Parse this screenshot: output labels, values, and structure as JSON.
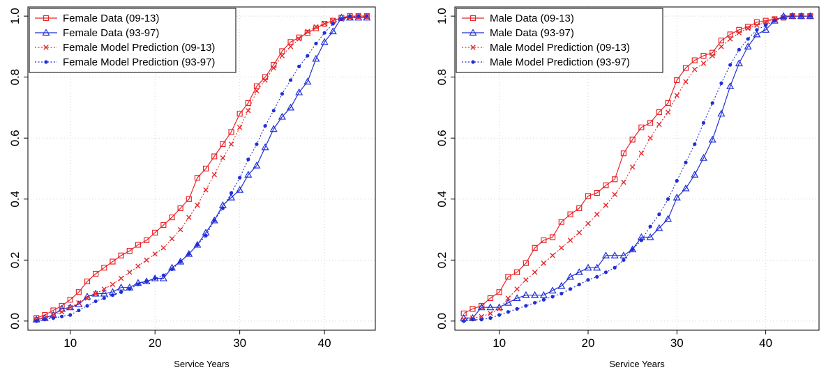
{
  "chart_data": [
    {
      "type": "line",
      "xlabel": "Service Years",
      "ylabel": "",
      "xlim": [
        5,
        46
      ],
      "ylim": [
        -0.03,
        1.03
      ],
      "xticks": [
        10,
        20,
        30,
        40
      ],
      "yticks": [
        0.0,
        0.2,
        0.4,
        0.6,
        0.8,
        1.0
      ],
      "ytick_labels": [
        "0.0",
        "0.2",
        "0.4",
        "0.6",
        "0.8",
        "1.0"
      ],
      "grid": true,
      "legend_position": "top-left",
      "x": [
        6,
        7,
        8,
        9,
        10,
        11,
        12,
        13,
        14,
        15,
        16,
        17,
        18,
        19,
        20,
        21,
        22,
        23,
        24,
        25,
        26,
        27,
        28,
        29,
        30,
        31,
        32,
        33,
        34,
        35,
        36,
        37,
        38,
        39,
        40,
        41,
        42,
        43,
        44,
        45
      ],
      "series": [
        {
          "name": "Female Data (09-13)",
          "color": "#e8262a",
          "line": "solid",
          "marker": "square",
          "values": [
            0.01,
            0.02,
            0.035,
            0.05,
            0.07,
            0.095,
            0.13,
            0.155,
            0.175,
            0.195,
            0.215,
            0.23,
            0.25,
            0.265,
            0.29,
            0.315,
            0.34,
            0.37,
            0.4,
            0.47,
            0.5,
            0.54,
            0.58,
            0.62,
            0.68,
            0.715,
            0.77,
            0.8,
            0.84,
            0.885,
            0.915,
            0.93,
            0.945,
            0.96,
            0.975,
            0.985,
            0.995,
            1.0,
            1.0,
            1.0
          ]
        },
        {
          "name": "Female Data (93-97)",
          "color": "#1f2fd6",
          "line": "solid",
          "marker": "triangle",
          "values": [
            0.005,
            0.01,
            0.02,
            0.04,
            0.045,
            0.055,
            0.08,
            0.09,
            0.09,
            0.095,
            0.11,
            0.11,
            0.125,
            0.13,
            0.14,
            0.14,
            0.175,
            0.195,
            0.22,
            0.25,
            0.29,
            0.33,
            0.38,
            0.405,
            0.43,
            0.48,
            0.51,
            0.57,
            0.63,
            0.67,
            0.7,
            0.75,
            0.785,
            0.86,
            0.915,
            0.95,
            0.995,
            0.995,
            0.995,
            0.995
          ]
        },
        {
          "name": "Female Model Prediction (09-13)",
          "color": "#e8262a",
          "line": "dotted",
          "marker": "x",
          "values": [
            0.005,
            0.01,
            0.02,
            0.03,
            0.045,
            0.06,
            0.075,
            0.09,
            0.105,
            0.12,
            0.14,
            0.16,
            0.18,
            0.2,
            0.22,
            0.24,
            0.27,
            0.3,
            0.34,
            0.38,
            0.43,
            0.48,
            0.535,
            0.58,
            0.635,
            0.69,
            0.755,
            0.79,
            0.83,
            0.87,
            0.9,
            0.925,
            0.95,
            0.965,
            0.975,
            0.985,
            0.99,
            0.995,
            1.0,
            1.0
          ]
        },
        {
          "name": "Female Model Prediction (93-97)",
          "color": "#1f2fd6",
          "line": "dotted",
          "marker": "dot",
          "values": [
            0.0,
            0.005,
            0.01,
            0.015,
            0.02,
            0.035,
            0.05,
            0.065,
            0.075,
            0.085,
            0.095,
            0.105,
            0.12,
            0.13,
            0.14,
            0.15,
            0.17,
            0.195,
            0.22,
            0.25,
            0.28,
            0.33,
            0.37,
            0.42,
            0.47,
            0.53,
            0.58,
            0.64,
            0.69,
            0.745,
            0.79,
            0.835,
            0.87,
            0.91,
            0.945,
            0.975,
            0.99,
            1.0,
            1.0,
            1.0
          ]
        }
      ]
    },
    {
      "type": "line",
      "xlabel": "Service Years",
      "ylabel": "",
      "xlim": [
        5,
        46
      ],
      "ylim": [
        -0.03,
        1.03
      ],
      "xticks": [
        10,
        20,
        30,
        40
      ],
      "yticks": [
        0.0,
        0.2,
        0.4,
        0.6,
        0.8,
        1.0
      ],
      "ytick_labels": [
        "0.0",
        "0.2",
        "0.4",
        "0.6",
        "0.8",
        "1.0"
      ],
      "grid": true,
      "legend_position": "top-left",
      "x": [
        6,
        7,
        8,
        9,
        10,
        11,
        12,
        13,
        14,
        15,
        16,
        17,
        18,
        19,
        20,
        21,
        22,
        23,
        24,
        25,
        26,
        27,
        28,
        29,
        30,
        31,
        32,
        33,
        34,
        35,
        36,
        37,
        38,
        39,
        40,
        41,
        42,
        43,
        44,
        45
      ],
      "series": [
        {
          "name": "Male Data (09-13)",
          "color": "#e8262a",
          "line": "solid",
          "marker": "square",
          "values": [
            0.025,
            0.04,
            0.05,
            0.075,
            0.095,
            0.145,
            0.16,
            0.19,
            0.24,
            0.265,
            0.275,
            0.325,
            0.35,
            0.37,
            0.41,
            0.42,
            0.445,
            0.465,
            0.55,
            0.595,
            0.635,
            0.65,
            0.685,
            0.715,
            0.79,
            0.83,
            0.855,
            0.87,
            0.88,
            0.92,
            0.94,
            0.955,
            0.965,
            0.98,
            0.985,
            0.99,
            0.995,
            1.0,
            1.0,
            1.0
          ]
        },
        {
          "name": "Male Data (93-97)",
          "color": "#1f2fd6",
          "line": "solid",
          "marker": "triangle",
          "values": [
            0.01,
            0.01,
            0.045,
            0.045,
            0.045,
            0.06,
            0.075,
            0.085,
            0.085,
            0.085,
            0.1,
            0.115,
            0.145,
            0.16,
            0.175,
            0.175,
            0.215,
            0.215,
            0.215,
            0.235,
            0.275,
            0.275,
            0.305,
            0.335,
            0.405,
            0.435,
            0.48,
            0.535,
            0.595,
            0.68,
            0.77,
            0.845,
            0.9,
            0.94,
            0.955,
            0.985,
            1.0,
            1.0,
            1.0,
            1.0
          ]
        },
        {
          "name": "Male Model Prediction (09-13)",
          "color": "#e8262a",
          "line": "dotted",
          "marker": "x",
          "values": [
            0.005,
            0.01,
            0.015,
            0.025,
            0.04,
            0.075,
            0.105,
            0.135,
            0.16,
            0.19,
            0.215,
            0.24,
            0.265,
            0.29,
            0.32,
            0.35,
            0.38,
            0.415,
            0.455,
            0.505,
            0.55,
            0.6,
            0.645,
            0.685,
            0.74,
            0.785,
            0.825,
            0.845,
            0.87,
            0.9,
            0.925,
            0.945,
            0.96,
            0.97,
            0.98,
            0.99,
            0.995,
            1.0,
            1.0,
            1.0
          ]
        },
        {
          "name": "Male Model Prediction (93-97)",
          "color": "#1f2fd6",
          "line": "dotted",
          "marker": "dot",
          "values": [
            0.0,
            0.005,
            0.005,
            0.01,
            0.02,
            0.03,
            0.04,
            0.05,
            0.06,
            0.07,
            0.08,
            0.09,
            0.105,
            0.12,
            0.135,
            0.145,
            0.16,
            0.175,
            0.2,
            0.235,
            0.265,
            0.31,
            0.35,
            0.4,
            0.46,
            0.52,
            0.58,
            0.65,
            0.715,
            0.78,
            0.84,
            0.89,
            0.925,
            0.955,
            0.97,
            0.985,
            0.995,
            1.0,
            1.0,
            1.0
          ]
        }
      ]
    }
  ]
}
